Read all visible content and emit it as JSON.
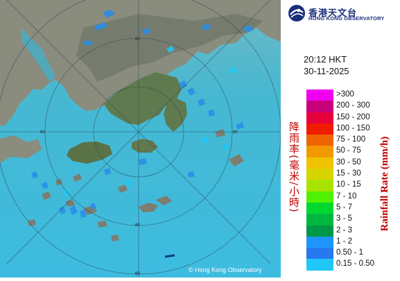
{
  "header": {
    "org_name_zh": "香港天文台",
    "org_name_en": "HONG KONG OBSERVATORY",
    "logo_icon": "hko-logo-icon"
  },
  "timestamp": {
    "time": "20:12 HKT",
    "date": "30-11-2025"
  },
  "titles": {
    "chinese": "降雨率(毫米/小時)",
    "english": "Rainfall Rate (mm/h)"
  },
  "legend": [
    {
      "label": ">300",
      "color": "#f000f0"
    },
    {
      "label": "200 - 300",
      "color": "#c8007a"
    },
    {
      "label": "150 - 200",
      "color": "#e8003c"
    },
    {
      "label": "100 - 150",
      "color": "#f01c00"
    },
    {
      "label": "75 - 100",
      "color": "#f06400"
    },
    {
      "label": "50 - 75",
      "color": "#f09a00"
    },
    {
      "label": "30 - 50",
      "color": "#f0c400"
    },
    {
      "label": "15 - 30",
      "color": "#d8d400"
    },
    {
      "label": "10 - 15",
      "color": "#a8e400"
    },
    {
      "label": "7 - 10",
      "color": "#50f000"
    },
    {
      "label": "5 - 7",
      "color": "#00d830"
    },
    {
      "label": "3 - 5",
      "color": "#00b840"
    },
    {
      "label": "2 - 3",
      "color": "#009848"
    },
    {
      "label": "1 - 2",
      "color": "#1e96ff"
    },
    {
      "label": "0.50 - 1",
      "color": "#2878f0"
    },
    {
      "label": "0.15 - 0.50",
      "color": "#20c8f8"
    }
  ],
  "map": {
    "range_ring_label": "60",
    "copyright": "© Hong Kong Observatory",
    "sea_color": "#3fb9d6",
    "land_color": "#8a8a7a"
  }
}
